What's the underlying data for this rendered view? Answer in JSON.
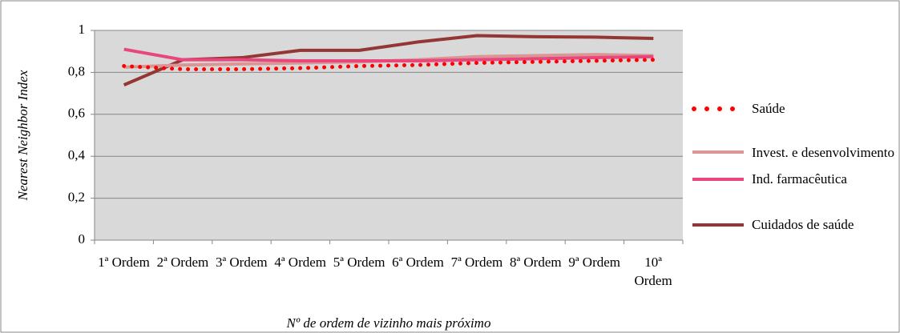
{
  "chart_data": {
    "type": "line",
    "y_label": "Nearest Neighbor Index",
    "x_label": "Nº de ordem de vizinho mais próximo",
    "categories": [
      "1ª Ordem",
      "2ª Ordem",
      "3ª Ordem",
      "4ª Ordem",
      "5ª Ordem",
      "6ª Ordem",
      "7ª Ordem",
      "8ª Ordem",
      "9ª Ordem",
      "10ª Ordem"
    ],
    "series": [
      {
        "name": "Saúde",
        "color": "#ff0000",
        "style": "dotted",
        "values": [
          0.83,
          0.815,
          0.815,
          0.82,
          0.83,
          0.835,
          0.845,
          0.85,
          0.855,
          0.86
        ]
      },
      {
        "name": "Invest. e desenvolvimento",
        "color": "#d99694",
        "style": "solid",
        "values": [
          0.825,
          0.835,
          0.84,
          0.845,
          0.85,
          0.86,
          0.875,
          0.88,
          0.885,
          0.88
        ]
      },
      {
        "name": "Ind. farmacêutica",
        "color": "#e8467c",
        "style": "solid",
        "values": [
          0.91,
          0.86,
          0.86,
          0.855,
          0.855,
          0.855,
          0.86,
          0.865,
          0.87,
          0.875
        ]
      },
      {
        "name": "Cuidados de saúde",
        "color": "#943634",
        "style": "solid",
        "values": [
          0.74,
          0.86,
          0.87,
          0.905,
          0.905,
          0.945,
          0.975,
          0.97,
          0.968,
          0.962
        ]
      }
    ],
    "ylim": [
      0,
      1
    ],
    "yticks": [
      0,
      {
        "value": 0.2,
        "label": "0,2"
      },
      {
        "value": 0.4,
        "label": "0,4"
      },
      {
        "value": 0.6,
        "label": "0,6"
      },
      {
        "value": 0.8,
        "label": "0,8"
      },
      1
    ],
    "grid": true,
    "legend": "right"
  }
}
